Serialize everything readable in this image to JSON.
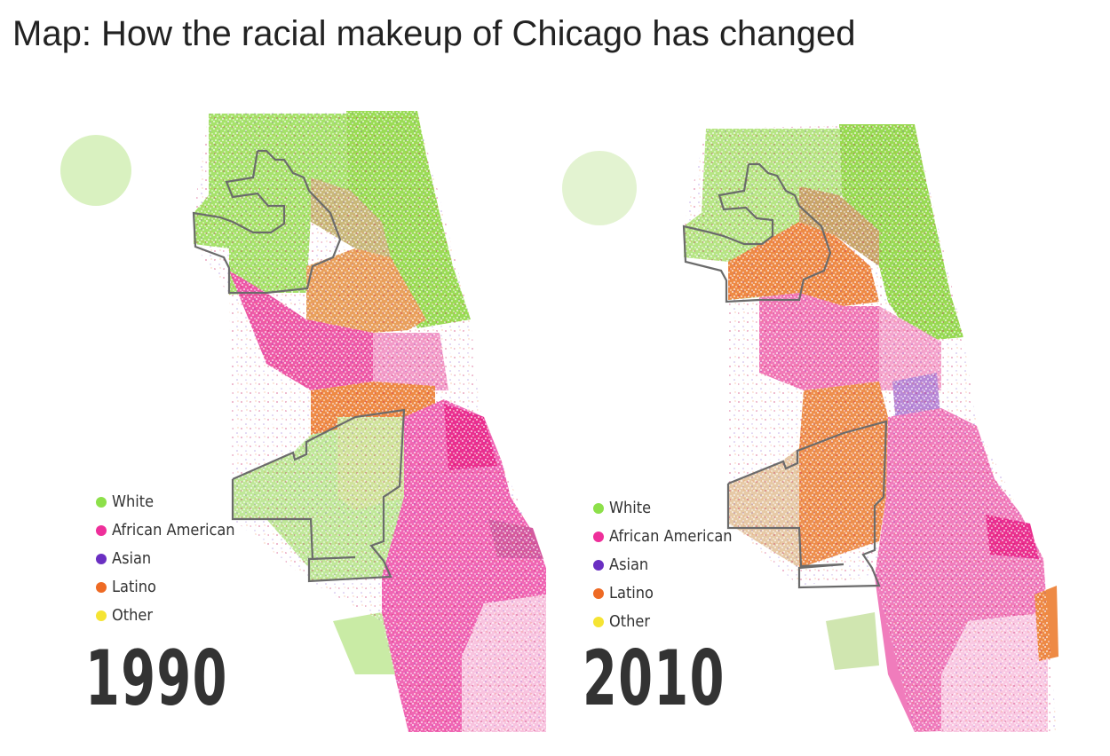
{
  "title": "Map: How the racial makeup of Chicago has changed",
  "legend": [
    {
      "label": "White",
      "color": "#8de04a"
    },
    {
      "label": "African American",
      "color": "#ee2f9a"
    },
    {
      "label": "Asian",
      "color": "#6a2fc2"
    },
    {
      "label": "Latino",
      "color": "#ee6a24"
    },
    {
      "label": "Other",
      "color": "#f5e433"
    }
  ],
  "maps": [
    {
      "year": "1990",
      "regions": [
        {
          "zone": "far-northwest",
          "dominant": "White"
        },
        {
          "zone": "north-lakefront",
          "dominant": "White"
        },
        {
          "zone": "north-central",
          "dominant": "Latino"
        },
        {
          "zone": "west-side",
          "dominant": "African American"
        },
        {
          "zone": "southwest",
          "dominant": "White"
        },
        {
          "zone": "near-southwest",
          "dominant": "Latino"
        },
        {
          "zone": "south-side",
          "dominant": "African American"
        }
      ]
    },
    {
      "year": "2010",
      "regions": [
        {
          "zone": "far-northwest",
          "dominant": "White"
        },
        {
          "zone": "north-lakefront",
          "dominant": "White"
        },
        {
          "zone": "northwest",
          "dominant": "Latino"
        },
        {
          "zone": "west-side",
          "dominant": "African American"
        },
        {
          "zone": "southwest",
          "dominant": "Latino"
        },
        {
          "zone": "near-south",
          "dominant": "Asian"
        },
        {
          "zone": "south-side",
          "dominant": "African American"
        }
      ]
    }
  ]
}
